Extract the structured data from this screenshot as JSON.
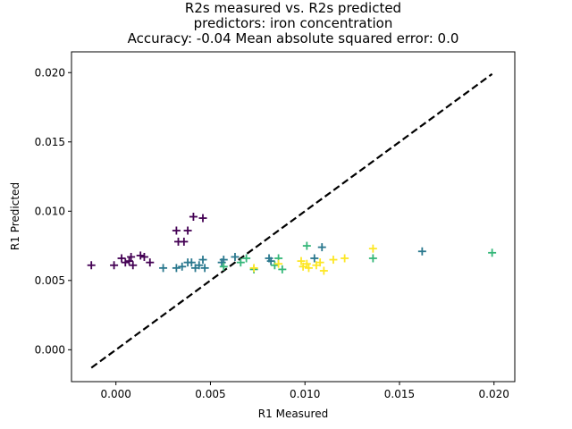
{
  "chart_data": {
    "type": "scatter",
    "title": [
      "R2s measured vs. R2s predicted",
      "predictors: iron concentration",
      "Accuracy: -0.04 Mean absolute squared error: 0.0"
    ],
    "xlabel": "R1 Measured",
    "ylabel": "R1 Predicted",
    "xlim": [
      -0.00235,
      0.0211
    ],
    "ylim": [
      -0.0023,
      0.0215
    ],
    "xticks": [
      0.0,
      0.005,
      0.01,
      0.015,
      0.02
    ],
    "xtick_labels": [
      "0.000",
      "0.005",
      "0.010",
      "0.015",
      "0.020"
    ],
    "yticks": [
      0.0,
      0.005,
      0.01,
      0.015,
      0.02
    ],
    "ytick_labels": [
      "0.000",
      "0.005",
      "0.010",
      "0.015",
      "0.020"
    ],
    "grid": false,
    "marker": "+",
    "reference_line": {
      "style": "dashed",
      "color": "#000000",
      "x": [
        -0.0013,
        0.0199
      ],
      "y": [
        -0.0013,
        0.0199
      ]
    },
    "colors": {
      "purple": "#440154",
      "teal": "#2a788e",
      "green": "#35b779",
      "yellow": "#fde725"
    },
    "points": [
      {
        "x": -0.0013,
        "y": 0.0061,
        "color": "#440154"
      },
      {
        "x": -0.0001,
        "y": 0.0061,
        "color": "#440154"
      },
      {
        "x": 0.0003,
        "y": 0.0066,
        "color": "#440154"
      },
      {
        "x": 0.0005,
        "y": 0.0063,
        "color": "#440154"
      },
      {
        "x": 0.0007,
        "y": 0.0064,
        "color": "#440154"
      },
      {
        "x": 0.0008,
        "y": 0.0067,
        "color": "#440154"
      },
      {
        "x": 0.0009,
        "y": 0.0061,
        "color": "#440154"
      },
      {
        "x": 0.0013,
        "y": 0.0068,
        "color": "#440154"
      },
      {
        "x": 0.0015,
        "y": 0.0067,
        "color": "#440154"
      },
      {
        "x": 0.0018,
        "y": 0.0063,
        "color": "#440154"
      },
      {
        "x": 0.0032,
        "y": 0.0086,
        "color": "#440154"
      },
      {
        "x": 0.0033,
        "y": 0.0078,
        "color": "#440154"
      },
      {
        "x": 0.0036,
        "y": 0.0078,
        "color": "#440154"
      },
      {
        "x": 0.0038,
        "y": 0.0086,
        "color": "#440154"
      },
      {
        "x": 0.0041,
        "y": 0.0096,
        "color": "#440154"
      },
      {
        "x": 0.0046,
        "y": 0.0095,
        "color": "#440154"
      },
      {
        "x": 0.0025,
        "y": 0.0059,
        "color": "#2a788e"
      },
      {
        "x": 0.0032,
        "y": 0.0059,
        "color": "#2a788e"
      },
      {
        "x": 0.0035,
        "y": 0.006,
        "color": "#2a788e"
      },
      {
        "x": 0.0038,
        "y": 0.0063,
        "color": "#2a788e"
      },
      {
        "x": 0.004,
        "y": 0.0063,
        "color": "#2a788e"
      },
      {
        "x": 0.0042,
        "y": 0.0059,
        "color": "#2a788e"
      },
      {
        "x": 0.0044,
        "y": 0.0061,
        "color": "#2a788e"
      },
      {
        "x": 0.0046,
        "y": 0.0065,
        "color": "#2a788e"
      },
      {
        "x": 0.0047,
        "y": 0.0059,
        "color": "#2a788e"
      },
      {
        "x": 0.0056,
        "y": 0.0063,
        "color": "#2a788e"
      },
      {
        "x": 0.0057,
        "y": 0.0065,
        "color": "#2a788e"
      },
      {
        "x": 0.0063,
        "y": 0.0067,
        "color": "#2a788e"
      },
      {
        "x": 0.0081,
        "y": 0.0066,
        "color": "#2a788e"
      },
      {
        "x": 0.0082,
        "y": 0.0064,
        "color": "#2a788e"
      },
      {
        "x": 0.0105,
        "y": 0.0066,
        "color": "#2a788e"
      },
      {
        "x": 0.0109,
        "y": 0.0074,
        "color": "#2a788e"
      },
      {
        "x": 0.0162,
        "y": 0.0071,
        "color": "#2a788e"
      },
      {
        "x": 0.0057,
        "y": 0.006,
        "color": "#35b779"
      },
      {
        "x": 0.0066,
        "y": 0.0063,
        "color": "#35b779"
      },
      {
        "x": 0.0069,
        "y": 0.0066,
        "color": "#35b779"
      },
      {
        "x": 0.0073,
        "y": 0.0058,
        "color": "#35b779"
      },
      {
        "x": 0.0084,
        "y": 0.0061,
        "color": "#35b779"
      },
      {
        "x": 0.0086,
        "y": 0.0066,
        "color": "#35b779"
      },
      {
        "x": 0.0088,
        "y": 0.0058,
        "color": "#35b779"
      },
      {
        "x": 0.0101,
        "y": 0.0075,
        "color": "#35b779"
      },
      {
        "x": 0.0136,
        "y": 0.0066,
        "color": "#35b779"
      },
      {
        "x": 0.0199,
        "y": 0.007,
        "color": "#35b779"
      },
      {
        "x": 0.0073,
        "y": 0.0059,
        "color": "#fde725"
      },
      {
        "x": 0.0086,
        "y": 0.0062,
        "color": "#fde725"
      },
      {
        "x": 0.0098,
        "y": 0.0064,
        "color": "#fde725"
      },
      {
        "x": 0.0099,
        "y": 0.006,
        "color": "#fde725"
      },
      {
        "x": 0.0101,
        "y": 0.0062,
        "color": "#fde725"
      },
      {
        "x": 0.0102,
        "y": 0.0059,
        "color": "#fde725"
      },
      {
        "x": 0.0106,
        "y": 0.0061,
        "color": "#fde725"
      },
      {
        "x": 0.0108,
        "y": 0.0063,
        "color": "#fde725"
      },
      {
        "x": 0.011,
        "y": 0.0057,
        "color": "#fde725"
      },
      {
        "x": 0.0115,
        "y": 0.0065,
        "color": "#fde725"
      },
      {
        "x": 0.0121,
        "y": 0.0066,
        "color": "#fde725"
      },
      {
        "x": 0.0136,
        "y": 0.0073,
        "color": "#fde725"
      }
    ]
  }
}
